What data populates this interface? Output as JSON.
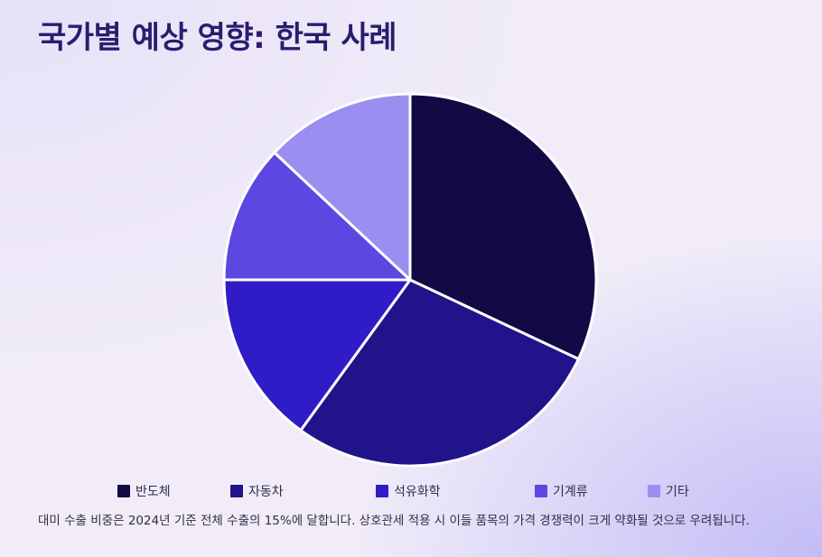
{
  "title": "국가별 예상 영향: 한국 사례",
  "chart_data": {
    "type": "pie",
    "categories": [
      "반도체",
      "자동차",
      "석유화학",
      "기계류",
      "기타"
    ],
    "values": [
      32,
      28,
      15,
      12,
      13
    ],
    "colors": [
      "#120a45",
      "#21148a",
      "#2f1cc6",
      "#5c48e0",
      "#9a8ef0"
    ],
    "legend_position": "bottom"
  },
  "note": "대미 수출 비중은 2024년 기준 전체 수출의 15%에 달합니다. 상호관세 적용 시 이들 품목의 가격 경쟁력이 크게 약화될 것으로 우려됩니다."
}
